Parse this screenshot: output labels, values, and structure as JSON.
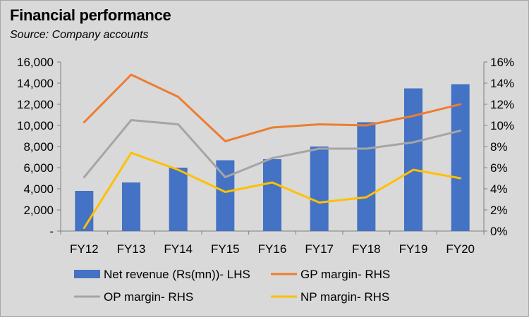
{
  "title": "Financial performance",
  "subtitle": "Source: Company accounts",
  "chart_data": {
    "type": "bar",
    "categories": [
      "FY12",
      "FY13",
      "FY14",
      "FY15",
      "FY16",
      "FY17",
      "FY18",
      "FY19",
      "FY20"
    ],
    "y_left": {
      "min": 0,
      "max": 16000,
      "step": 2000,
      "tick_labels": [
        "-",
        "2,000",
        "4,000",
        "6,000",
        "8,000",
        "10,000",
        "12,000",
        "14,000",
        "16,000"
      ]
    },
    "y_right": {
      "min": 0,
      "max": 16,
      "step": 2,
      "tick_labels": [
        "0%",
        "2%",
        "4%",
        "6%",
        "8%",
        "10%",
        "12%",
        "14%",
        "16%"
      ]
    },
    "bars": {
      "name": "Net revenue (Rs(mn))- LHS",
      "color": "#4472c4",
      "values": [
        3800,
        4600,
        6000,
        6700,
        6800,
        8000,
        10300,
        13500,
        13900
      ]
    },
    "lines": [
      {
        "name": "GP margin- RHS",
        "color": "#ed7d31",
        "values": [
          10.3,
          14.8,
          12.7,
          8.5,
          9.8,
          10.1,
          10.0,
          10.9,
          12.0
        ]
      },
      {
        "name": "OP margin- RHS",
        "color": "#a5a5a5",
        "values": [
          5.1,
          10.5,
          10.1,
          5.1,
          6.9,
          7.8,
          7.8,
          8.4,
          9.5
        ]
      },
      {
        "name": "NP margin- RHS",
        "color": "#ffc000",
        "values": [
          0.3,
          7.4,
          5.8,
          3.7,
          4.6,
          2.7,
          3.2,
          5.8,
          5.0
        ]
      }
    ],
    "grid": false,
    "legend": "bottom"
  }
}
